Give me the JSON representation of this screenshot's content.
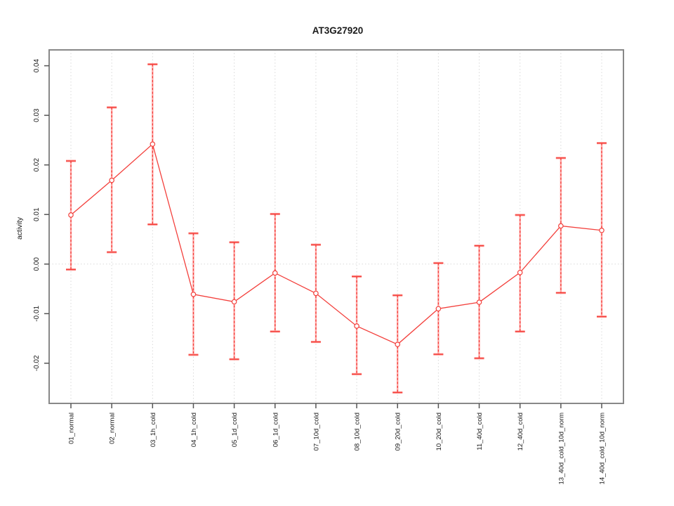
{
  "chart_data": {
    "type": "line",
    "title": "AT3G27920",
    "xlabel": "",
    "ylabel": "activity",
    "legend": null,
    "grid": "dotted vertical gridline at each category; dotted horizontal line at y=0",
    "ylim": [
      -0.0281,
      0.0432
    ],
    "categories": [
      "01_normal",
      "02_normal",
      "03_1h_cold",
      "04_1h_cold",
      "05_1d_cold",
      "06_1d_cold",
      "07_10d_cold",
      "08_10d_cold",
      "09_20d_cold",
      "10_20d_cold",
      "11_40d_cold",
      "12_40d_cold",
      "13_40d_cold_10d_norm",
      "14_40d_cold_10d_norm"
    ],
    "series": [
      {
        "name": "activity",
        "marker": "open-circle",
        "values": [
          0.0099,
          0.0169,
          0.0242,
          -0.0061,
          -0.0076,
          -0.0018,
          -0.0059,
          -0.0125,
          -0.0162,
          -0.009,
          -0.0077,
          -0.0017,
          0.0077,
          0.0068
        ],
        "error_upper": [
          0.0208,
          0.0316,
          0.0403,
          0.0062,
          0.0044,
          0.0101,
          0.0039,
          -0.0025,
          -0.0063,
          0.0002,
          0.0037,
          0.0099,
          0.0214,
          0.0244
        ],
        "error_lower": [
          -0.0011,
          0.0024,
          0.008,
          -0.0183,
          -0.0192,
          -0.0136,
          -0.0157,
          -0.0222,
          -0.0259,
          -0.0182,
          -0.019,
          -0.0136,
          -0.0058,
          -0.0106
        ]
      }
    ],
    "y_ticks": {
      "values": [
        -0.02,
        -0.01,
        0.0,
        0.01,
        0.02,
        0.03,
        0.04
      ],
      "labels": [
        "-0.02",
        "-0.01",
        "0.00",
        "0.01",
        "0.02",
        "0.03",
        "0.04"
      ]
    },
    "colors": {
      "line_red": "#f3403c",
      "errorbar_pink": "#ffaaa8",
      "cap_pink": "#ff9e9a",
      "grid_grey": "#d9d9d9",
      "axis_grey": "#888888",
      "tick_grey": "#555555",
      "text_dark": "#1a1a1a",
      "background": "#ffffff"
    }
  }
}
